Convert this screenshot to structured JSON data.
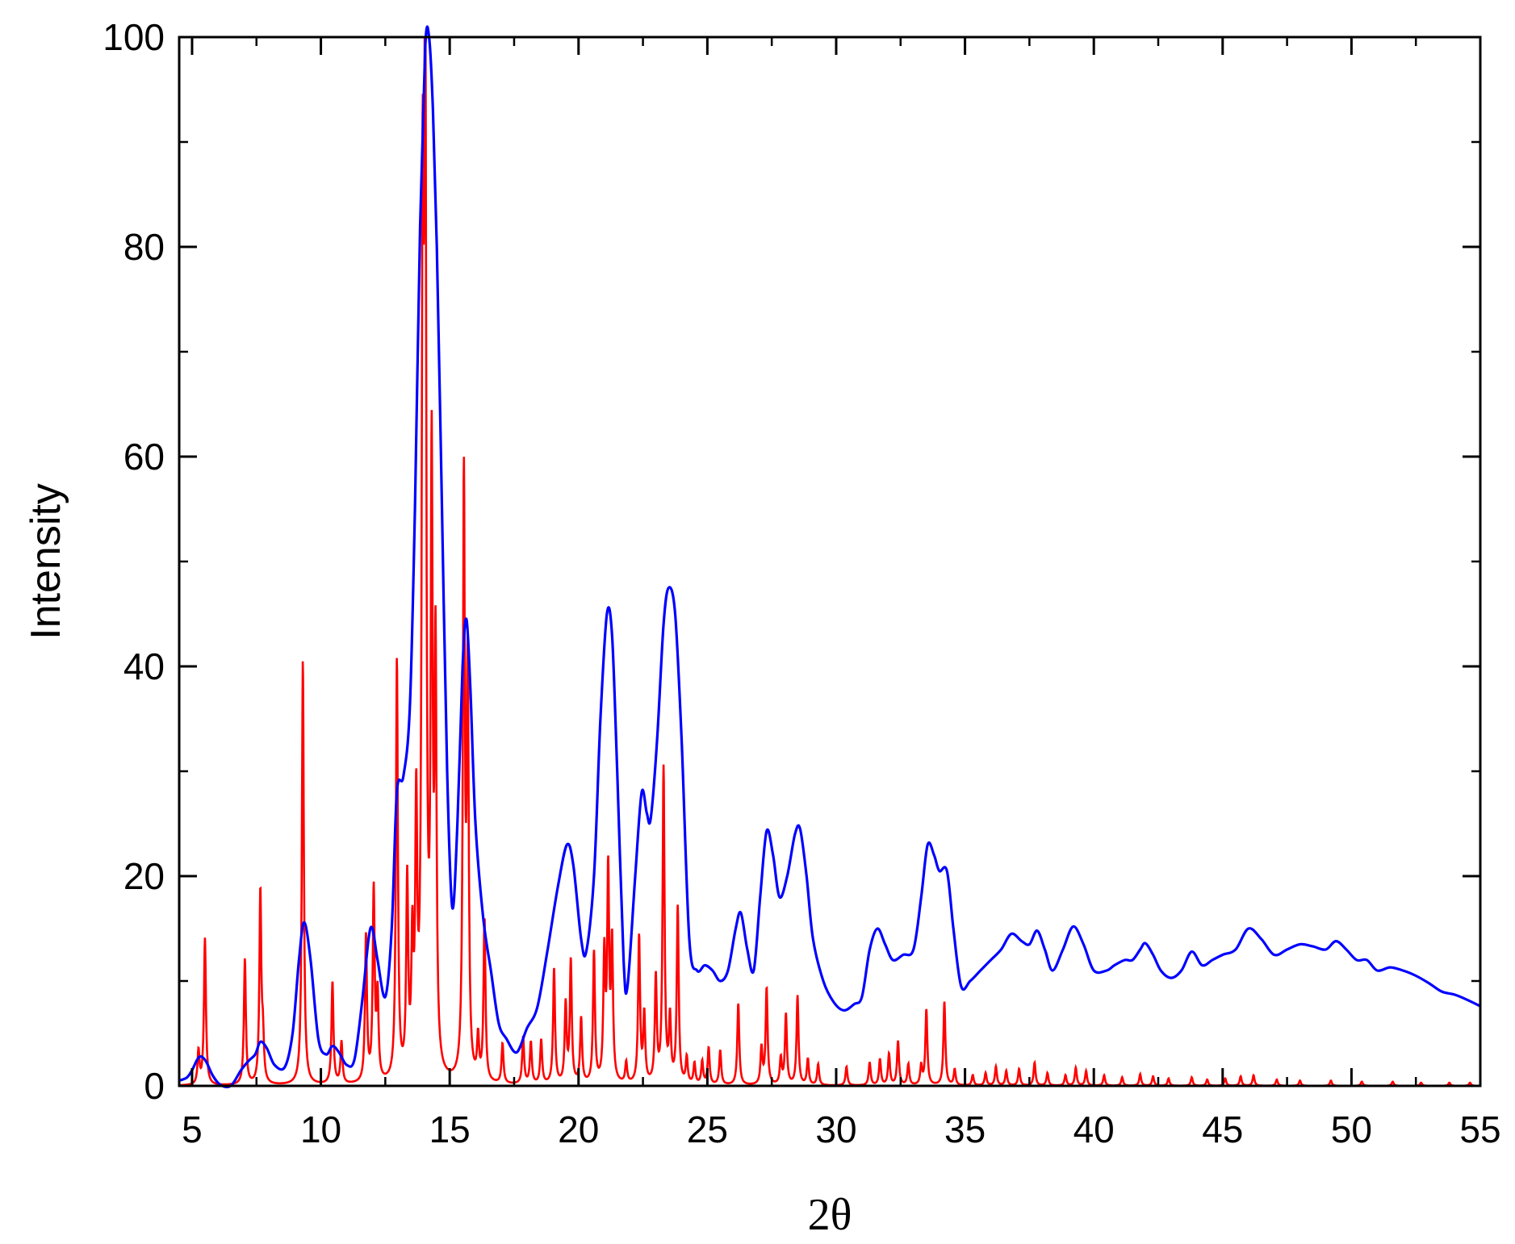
{
  "chart_data": {
    "type": "line",
    "title": "",
    "xlabel": "2θ",
    "ylabel": "Intensity",
    "xlim": [
      4.5,
      55
    ],
    "ylim": [
      0,
      100
    ],
    "xticks": [
      5,
      10,
      15,
      20,
      25,
      30,
      35,
      40,
      45,
      50,
      55
    ],
    "yticks": [
      0,
      20,
      40,
      60,
      80,
      100
    ],
    "grid": false,
    "legend": "none",
    "series": [
      {
        "color": "#0000ff",
        "style": "broad-profile",
        "points": [
          [
            4.5,
            0.5
          ],
          [
            4.8,
            0.8
          ],
          [
            5.0,
            1.5
          ],
          [
            5.2,
            2.5
          ],
          [
            5.35,
            2.8
          ],
          [
            5.55,
            2.3
          ],
          [
            5.8,
            1.0
          ],
          [
            6.1,
            0.1
          ],
          [
            6.5,
            0.0
          ],
          [
            6.9,
            1.5
          ],
          [
            7.2,
            2.4
          ],
          [
            7.45,
            3.0
          ],
          [
            7.65,
            4.2
          ],
          [
            7.9,
            3.6
          ],
          [
            8.2,
            2.0
          ],
          [
            8.6,
            1.8
          ],
          [
            8.9,
            5.0
          ],
          [
            9.15,
            12.0
          ],
          [
            9.35,
            15.6
          ],
          [
            9.6,
            12.0
          ],
          [
            9.9,
            4.5
          ],
          [
            10.2,
            3.0
          ],
          [
            10.45,
            3.8
          ],
          [
            10.7,
            3.2
          ],
          [
            11.0,
            2.0
          ],
          [
            11.3,
            2.5
          ],
          [
            11.6,
            8.0
          ],
          [
            11.85,
            14.0
          ],
          [
            12.0,
            15.0
          ],
          [
            12.2,
            12.0
          ],
          [
            12.5,
            8.5
          ],
          [
            12.75,
            15.0
          ],
          [
            12.95,
            28.0
          ],
          [
            13.2,
            29.5
          ],
          [
            13.45,
            36.0
          ],
          [
            13.65,
            55.0
          ],
          [
            13.85,
            82.0
          ],
          [
            14.05,
            99.0
          ],
          [
            14.2,
            100.0
          ],
          [
            14.35,
            93.0
          ],
          [
            14.5,
            80.0
          ],
          [
            14.7,
            55.0
          ],
          [
            14.9,
            30.0
          ],
          [
            15.1,
            17.0
          ],
          [
            15.3,
            25.0
          ],
          [
            15.5,
            40.0
          ],
          [
            15.65,
            44.5
          ],
          [
            15.8,
            38.0
          ],
          [
            16.0,
            25.0
          ],
          [
            16.3,
            16.0
          ],
          [
            16.6,
            11.0
          ],
          [
            16.9,
            6.0
          ],
          [
            17.2,
            4.5
          ],
          [
            17.6,
            3.2
          ],
          [
            18.0,
            5.5
          ],
          [
            18.4,
            7.5
          ],
          [
            18.8,
            13.0
          ],
          [
            19.2,
            19.0
          ],
          [
            19.55,
            23.0
          ],
          [
            19.8,
            21.0
          ],
          [
            20.1,
            14.0
          ],
          [
            20.3,
            12.8
          ],
          [
            20.6,
            20.0
          ],
          [
            20.85,
            35.0
          ],
          [
            21.1,
            45.0
          ],
          [
            21.3,
            43.0
          ],
          [
            21.5,
            30.0
          ],
          [
            21.75,
            12.0
          ],
          [
            21.9,
            9.5
          ],
          [
            22.2,
            20.0
          ],
          [
            22.45,
            28.0
          ],
          [
            22.65,
            26.0
          ],
          [
            22.8,
            25.5
          ],
          [
            23.05,
            33.0
          ],
          [
            23.3,
            44.0
          ],
          [
            23.5,
            47.5
          ],
          [
            23.75,
            45.0
          ],
          [
            24.0,
            33.0
          ],
          [
            24.3,
            14.0
          ],
          [
            24.6,
            11.0
          ],
          [
            24.9,
            11.5
          ],
          [
            25.2,
            11.0
          ],
          [
            25.5,
            10.0
          ],
          [
            25.8,
            11.0
          ],
          [
            26.1,
            15.0
          ],
          [
            26.3,
            16.5
          ],
          [
            26.55,
            13.0
          ],
          [
            26.8,
            11.0
          ],
          [
            27.05,
            18.0
          ],
          [
            27.3,
            24.3
          ],
          [
            27.55,
            22.0
          ],
          [
            27.8,
            18.0
          ],
          [
            28.1,
            20.0
          ],
          [
            28.4,
            24.0
          ],
          [
            28.6,
            24.5
          ],
          [
            28.85,
            20.0
          ],
          [
            29.1,
            14.0
          ],
          [
            29.5,
            10.0
          ],
          [
            29.9,
            8.0
          ],
          [
            30.3,
            7.2
          ],
          [
            30.7,
            7.8
          ],
          [
            31.0,
            8.5
          ],
          [
            31.3,
            13.0
          ],
          [
            31.6,
            15.0
          ],
          [
            31.9,
            13.5
          ],
          [
            32.2,
            12.0
          ],
          [
            32.6,
            12.5
          ],
          [
            33.0,
            13.0
          ],
          [
            33.3,
            18.0
          ],
          [
            33.55,
            23.0
          ],
          [
            33.8,
            22.0
          ],
          [
            34.0,
            20.5
          ],
          [
            34.3,
            20.5
          ],
          [
            34.55,
            15.0
          ],
          [
            34.85,
            9.5
          ],
          [
            35.2,
            10.0
          ],
          [
            35.6,
            11.0
          ],
          [
            36.0,
            12.0
          ],
          [
            36.4,
            13.0
          ],
          [
            36.8,
            14.5
          ],
          [
            37.2,
            13.8
          ],
          [
            37.5,
            13.5
          ],
          [
            37.8,
            14.8
          ],
          [
            38.1,
            13.0
          ],
          [
            38.4,
            11.0
          ],
          [
            38.8,
            13.0
          ],
          [
            39.2,
            15.2
          ],
          [
            39.6,
            13.5
          ],
          [
            40.0,
            11.0
          ],
          [
            40.5,
            11.0
          ],
          [
            40.8,
            11.5
          ],
          [
            41.2,
            12.0
          ],
          [
            41.5,
            12.0
          ],
          [
            41.8,
            13.0
          ],
          [
            42.0,
            13.6
          ],
          [
            42.3,
            12.5
          ],
          [
            42.6,
            11.0
          ],
          [
            43.0,
            10.3
          ],
          [
            43.4,
            11.0
          ],
          [
            43.8,
            12.8
          ],
          [
            44.2,
            11.5
          ],
          [
            44.6,
            12.0
          ],
          [
            45.0,
            12.5
          ],
          [
            45.5,
            13.0
          ],
          [
            46.0,
            15.0
          ],
          [
            46.5,
            14.0
          ],
          [
            47.0,
            12.5
          ],
          [
            47.5,
            13.0
          ],
          [
            48.0,
            13.5
          ],
          [
            48.5,
            13.3
          ],
          [
            49.0,
            13.0
          ],
          [
            49.4,
            13.8
          ],
          [
            49.8,
            13.0
          ],
          [
            50.2,
            12.0
          ],
          [
            50.6,
            12.0
          ],
          [
            51.0,
            11.0
          ],
          [
            51.5,
            11.3
          ],
          [
            52.0,
            11.0
          ],
          [
            52.5,
            10.5
          ],
          [
            53.0,
            9.8
          ],
          [
            53.5,
            9.0
          ],
          [
            54.0,
            8.7
          ],
          [
            54.5,
            8.2
          ],
          [
            55.0,
            7.6
          ]
        ]
      },
      {
        "color": "#ff0000",
        "style": "sharp-peaks",
        "peaks": [
          [
            5.25,
            3.2
          ],
          [
            5.5,
            14.0
          ],
          [
            7.05,
            12.0
          ],
          [
            7.65,
            18.3
          ],
          [
            7.75,
            4.0
          ],
          [
            9.3,
            40.5
          ],
          [
            10.45,
            9.8
          ],
          [
            10.8,
            4.0
          ],
          [
            11.75,
            14.0
          ],
          [
            12.05,
            18.2
          ],
          [
            12.2,
            8.0
          ],
          [
            12.95,
            40.0
          ],
          [
            13.35,
            18.5
          ],
          [
            13.55,
            12.0
          ],
          [
            13.7,
            24.5
          ],
          [
            13.95,
            75.0
          ],
          [
            14.05,
            100.0
          ],
          [
            14.3,
            56.5
          ],
          [
            14.45,
            39.0
          ],
          [
            15.55,
            56.5
          ],
          [
            15.7,
            38.0
          ],
          [
            16.1,
            4.0
          ],
          [
            16.35,
            15.5
          ],
          [
            17.05,
            3.8
          ],
          [
            17.85,
            4.5
          ],
          [
            18.15,
            4.0
          ],
          [
            18.55,
            4.2
          ],
          [
            19.05,
            11.0
          ],
          [
            19.5,
            7.5
          ],
          [
            19.7,
            11.7
          ],
          [
            20.1,
            6.2
          ],
          [
            20.6,
            12.5
          ],
          [
            21.0,
            12.0
          ],
          [
            21.15,
            19.8
          ],
          [
            21.3,
            13.0
          ],
          [
            21.85,
            2.0
          ],
          [
            22.35,
            14.0
          ],
          [
            22.55,
            6.5
          ],
          [
            23.0,
            10.0
          ],
          [
            23.3,
            30.0
          ],
          [
            23.55,
            6.0
          ],
          [
            23.85,
            16.8
          ],
          [
            24.2,
            2.5
          ],
          [
            24.5,
            2.0
          ],
          [
            24.8,
            2.2
          ],
          [
            25.05,
            3.5
          ],
          [
            25.5,
            3.3
          ],
          [
            26.2,
            7.8
          ],
          [
            27.1,
            3.5
          ],
          [
            27.3,
            9.2
          ],
          [
            27.85,
            2.5
          ],
          [
            28.05,
            6.7
          ],
          [
            28.5,
            8.5
          ],
          [
            28.9,
            2.5
          ],
          [
            29.3,
            2.0
          ],
          [
            30.4,
            1.8
          ],
          [
            31.3,
            2.2
          ],
          [
            31.7,
            2.5
          ],
          [
            32.05,
            3.0
          ],
          [
            32.4,
            4.2
          ],
          [
            32.8,
            2.0
          ],
          [
            33.3,
            1.8
          ],
          [
            33.5,
            7.2
          ],
          [
            34.2,
            8.0
          ],
          [
            34.6,
            1.5
          ],
          [
            35.3,
            1.0
          ],
          [
            35.8,
            1.2
          ],
          [
            36.2,
            1.8
          ],
          [
            36.6,
            1.4
          ],
          [
            37.1,
            1.6
          ],
          [
            37.7,
            2.2
          ],
          [
            38.2,
            1.2
          ],
          [
            38.9,
            1.0
          ],
          [
            39.3,
            1.7
          ],
          [
            39.7,
            1.4
          ],
          [
            40.4,
            1.0
          ],
          [
            41.1,
            0.8
          ],
          [
            41.8,
            1.1
          ],
          [
            42.3,
            0.9
          ],
          [
            42.9,
            0.7
          ],
          [
            43.8,
            0.8
          ],
          [
            44.4,
            0.6
          ],
          [
            45.1,
            0.7
          ],
          [
            45.7,
            0.9
          ],
          [
            46.2,
            1.0
          ],
          [
            47.1,
            0.6
          ],
          [
            48.0,
            0.5
          ],
          [
            49.2,
            0.5
          ],
          [
            50.4,
            0.4
          ],
          [
            51.6,
            0.4
          ],
          [
            52.7,
            0.3
          ],
          [
            53.8,
            0.3
          ],
          [
            54.6,
            0.3
          ]
        ]
      }
    ]
  }
}
